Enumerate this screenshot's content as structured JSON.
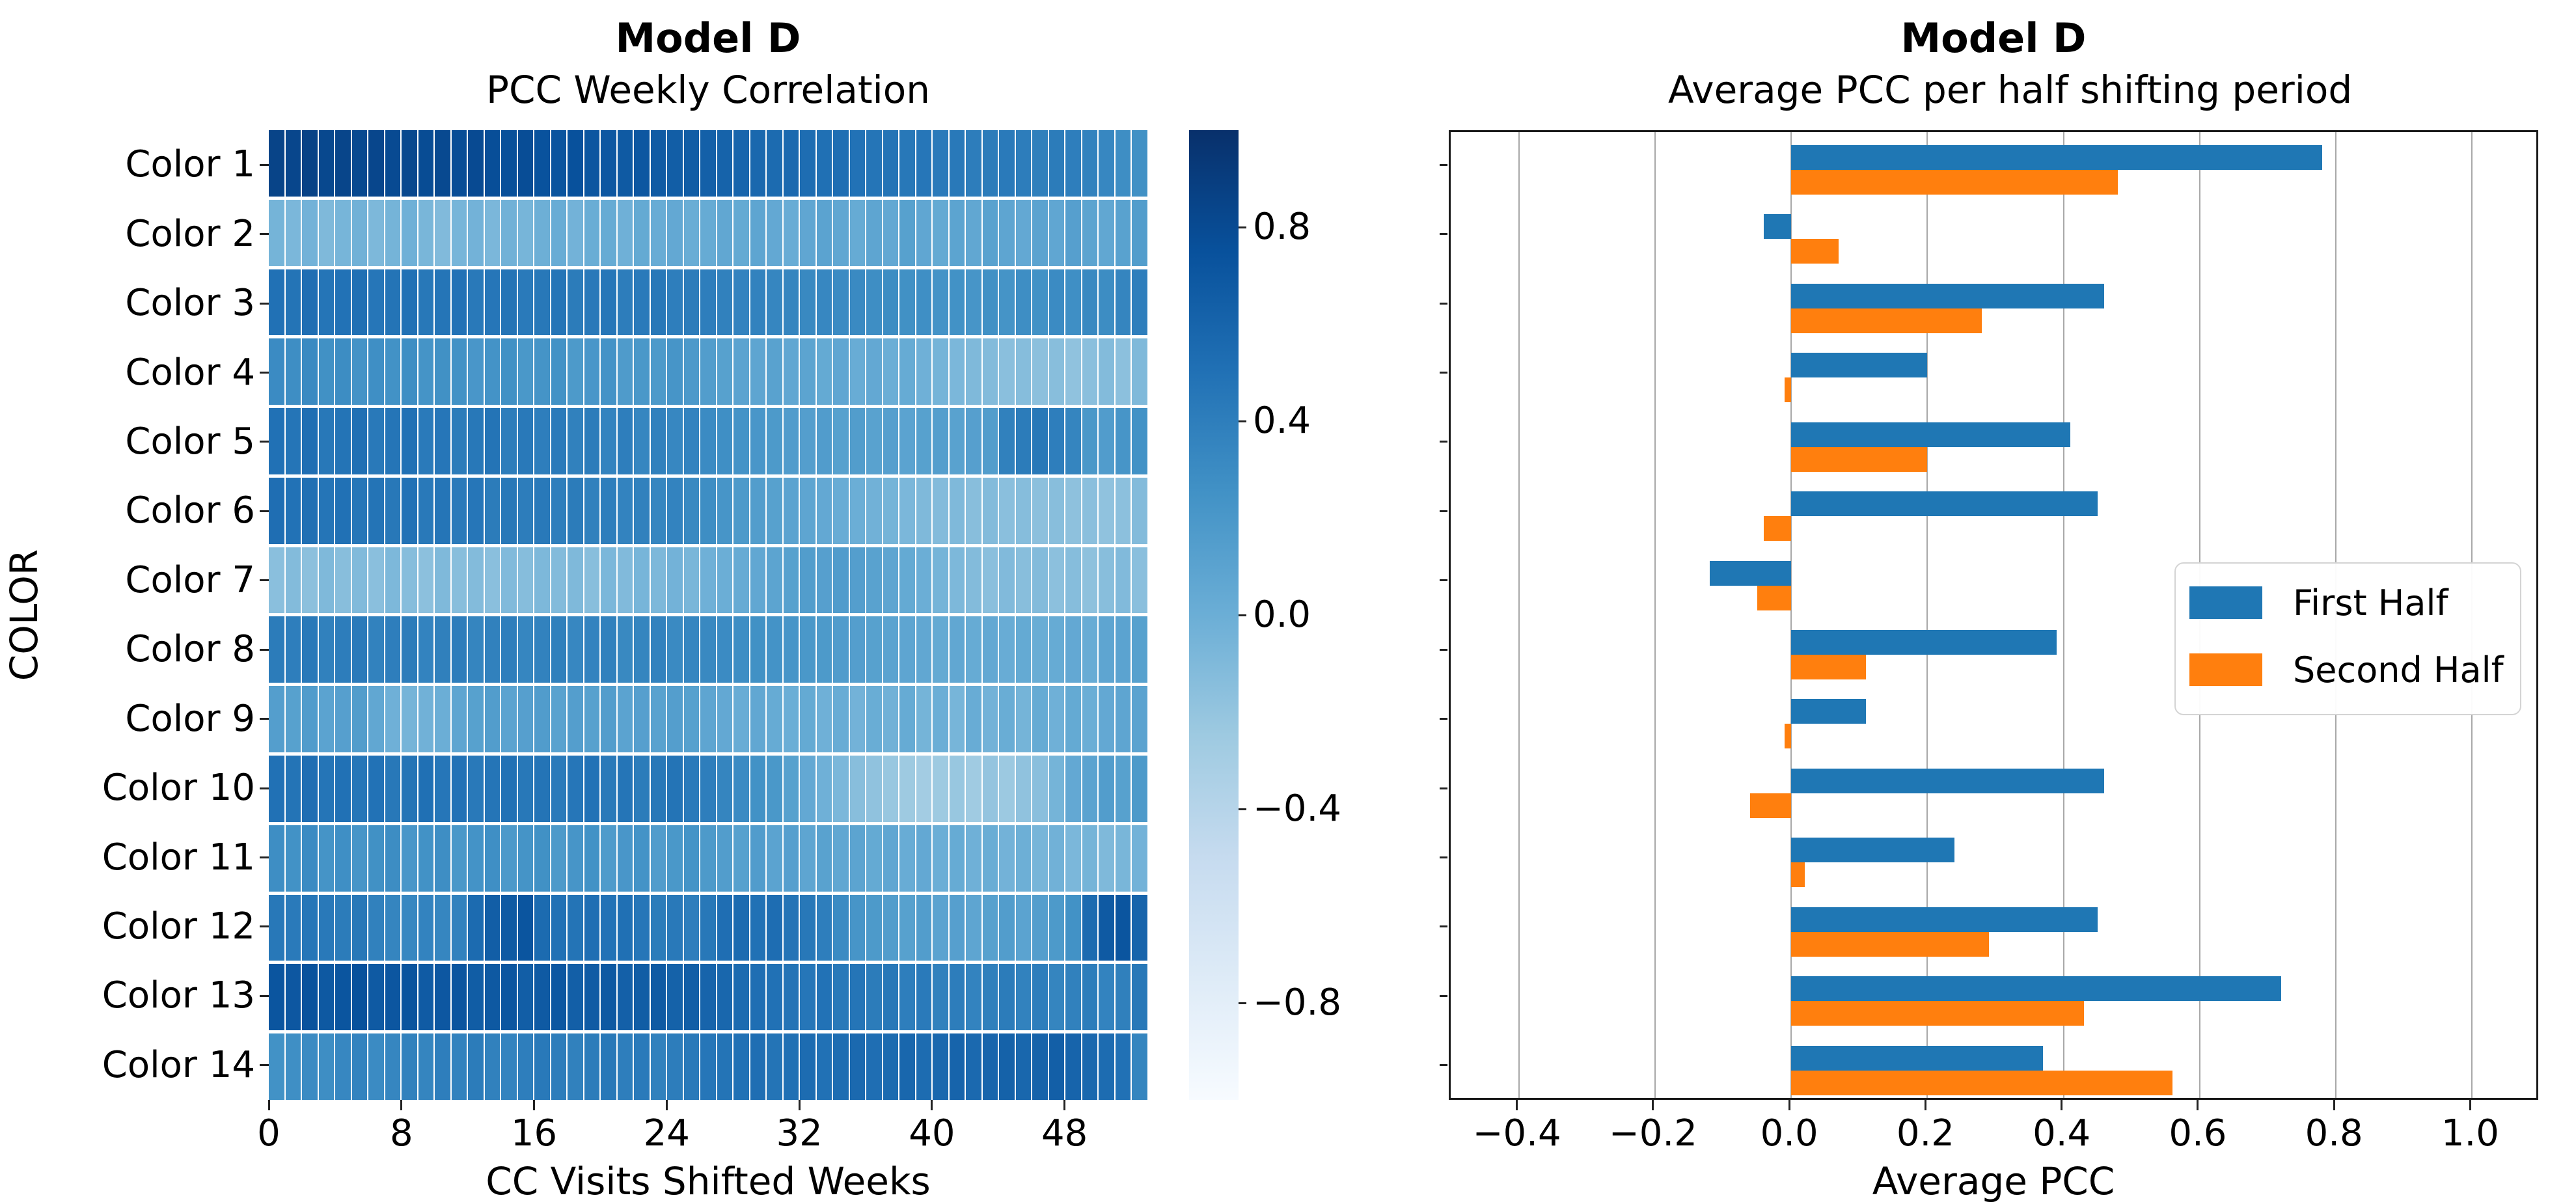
{
  "figure": {
    "background": "#ffffff"
  },
  "left_chart": {
    "title": "Model D",
    "subtitle": "PCC Weekly Correlation",
    "xlabel": "CC Visits Shifted Weeks",
    "ylabel": "COLOR",
    "x_tick_labels": [
      "0",
      "8",
      "16",
      "24",
      "32",
      "40",
      "48"
    ],
    "x_tick_values": [
      0,
      8,
      16,
      24,
      32,
      40,
      48
    ],
    "categories": [
      "Color 1",
      "Color 2",
      "Color 3",
      "Color 4",
      "Color 5",
      "Color 6",
      "Color 7",
      "Color 8",
      "Color 9",
      "Color 10",
      "Color 11",
      "Color 12",
      "Color 13",
      "Color 14"
    ],
    "colorbar": {
      "tick_labels": [
        "0.8",
        "0.4",
        "0.0",
        "−0.4",
        "−0.8"
      ],
      "tick_values": [
        0.8,
        0.4,
        0.0,
        -0.4,
        -0.8
      ],
      "vmin": -1,
      "vmax": 1
    }
  },
  "right_chart": {
    "title": "Model D",
    "subtitle": "Average PCC per half shifting period",
    "xlabel": "Average PCC",
    "x_tick_labels": [
      "−0.4",
      "−0.2",
      "0.0",
      "0.2",
      "0.4",
      "0.6",
      "0.8",
      "1.0"
    ],
    "x_tick_values": [
      -0.4,
      -0.2,
      0.0,
      0.2,
      0.4,
      0.6,
      0.8,
      1.0
    ],
    "xlim": [
      -0.5,
      1.1
    ],
    "legend": {
      "first_label": "First Half",
      "second_label": "Second Half"
    }
  },
  "colors": {
    "first_half": "#1f77b4",
    "second_half": "#ff7f0e",
    "grid": "#a8a8a8",
    "colormap_stops": [
      "#f7fbff",
      "#deebf7",
      "#c6dbef",
      "#9ecae1",
      "#6baed6",
      "#4292c6",
      "#2171b5",
      "#08519c",
      "#08306b"
    ]
  },
  "chart_data": [
    {
      "type": "heatmap",
      "title": "Model D — PCC Weekly Correlation",
      "xlabel": "CC Visits Shifted Weeks",
      "ylabel": "COLOR",
      "colormap": "Blues",
      "vmin": -1,
      "vmax": 1,
      "weeks": 53,
      "rows": [
        "Color 1",
        "Color 2",
        "Color 3",
        "Color 4",
        "Color 5",
        "Color 6",
        "Color 7",
        "Color 8",
        "Color 9",
        "Color 10",
        "Color 11",
        "Color 12",
        "Color 13",
        "Color 14"
      ],
      "values": [
        [
          0.85,
          0.83,
          0.86,
          0.82,
          0.84,
          0.81,
          0.83,
          0.8,
          0.82,
          0.79,
          0.81,
          0.78,
          0.8,
          0.77,
          0.76,
          0.78,
          0.74,
          0.73,
          0.75,
          0.71,
          0.7,
          0.68,
          0.7,
          0.67,
          0.65,
          0.66,
          0.63,
          0.61,
          0.59,
          0.57,
          0.55,
          0.56,
          0.53,
          0.51,
          0.52,
          0.49,
          0.47,
          0.48,
          0.45,
          0.46,
          0.43,
          0.44,
          0.41,
          0.42,
          0.43,
          0.41,
          0.39,
          0.42,
          0.4,
          0.37,
          0.33,
          0.28,
          0.26
        ],
        [
          -0.05,
          -0.08,
          -0.04,
          -0.1,
          -0.06,
          -0.03,
          -0.09,
          -0.05,
          -0.02,
          -0.07,
          -0.11,
          -0.06,
          -0.04,
          -0.08,
          -0.03,
          -0.06,
          -0.01,
          0.02,
          -0.04,
          0.01,
          0.03,
          -0.02,
          0.04,
          0.02,
          0.05,
          0.01,
          0.03,
          0.06,
          0.04,
          0.08,
          0.05,
          0.02,
          0.07,
          0.1,
          0.06,
          0.03,
          0.08,
          0.05,
          0.12,
          0.07,
          0.04,
          0.09,
          0.06,
          0.11,
          0.08,
          0.05,
          0.1,
          0.07,
          0.13,
          0.09,
          0.06,
          0.11,
          0.15
        ],
        [
          0.5,
          0.48,
          0.52,
          0.47,
          0.49,
          0.51,
          0.46,
          0.48,
          0.5,
          0.45,
          0.47,
          0.49,
          0.44,
          0.46,
          0.48,
          0.43,
          0.45,
          0.47,
          0.42,
          0.44,
          0.46,
          0.41,
          0.43,
          0.45,
          0.4,
          0.42,
          0.4,
          0.38,
          0.36,
          0.37,
          0.34,
          0.35,
          0.32,
          0.33,
          0.3,
          0.31,
          0.28,
          0.29,
          0.26,
          0.27,
          0.24,
          0.25,
          0.22,
          0.26,
          0.23,
          0.28,
          0.25,
          0.3,
          0.27,
          0.32,
          0.29,
          0.35,
          0.4
        ],
        [
          0.3,
          0.28,
          0.31,
          0.26,
          0.29,
          0.24,
          0.27,
          0.25,
          0.28,
          0.23,
          0.26,
          0.25,
          0.21,
          0.24,
          0.26,
          0.2,
          0.23,
          0.25,
          0.18,
          0.21,
          0.24,
          0.17,
          0.2,
          0.18,
          0.22,
          0.19,
          0.15,
          0.12,
          0.1,
          0.08,
          0.11,
          0.06,
          0.09,
          0.04,
          0.07,
          0.02,
          0.05,
          0.0,
          0.03,
          -0.02,
          -0.05,
          -0.08,
          -0.1,
          -0.12,
          -0.15,
          -0.13,
          -0.16,
          -0.14,
          -0.18,
          -0.15,
          -0.12,
          -0.16,
          -0.1
        ],
        [
          0.5,
          0.47,
          0.52,
          0.45,
          0.48,
          0.51,
          0.44,
          0.47,
          0.5,
          0.43,
          0.46,
          0.42,
          0.45,
          0.48,
          0.41,
          0.44,
          0.4,
          0.43,
          0.38,
          0.42,
          0.36,
          0.4,
          0.34,
          0.38,
          0.33,
          0.36,
          0.3,
          0.27,
          0.24,
          0.21,
          0.18,
          0.16,
          0.14,
          0.16,
          0.12,
          0.15,
          0.11,
          0.13,
          0.1,
          0.12,
          0.14,
          0.11,
          0.13,
          0.15,
          0.38,
          0.42,
          0.45,
          0.4,
          0.35,
          0.2,
          0.16,
          0.22,
          0.25
        ],
        [
          0.52,
          0.49,
          0.51,
          0.47,
          0.5,
          0.46,
          0.48,
          0.45,
          0.49,
          0.44,
          0.47,
          0.43,
          0.46,
          0.42,
          0.45,
          0.41,
          0.44,
          0.4,
          0.42,
          0.38,
          0.4,
          0.36,
          0.38,
          0.34,
          0.36,
          0.32,
          0.28,
          0.22,
          0.18,
          0.15,
          0.12,
          0.1,
          0.08,
          0.05,
          0.02,
          0.0,
          -0.03,
          -0.05,
          -0.08,
          -0.1,
          -0.12,
          -0.1,
          -0.14,
          -0.12,
          -0.15,
          -0.13,
          -0.16,
          -0.14,
          -0.17,
          -0.15,
          -0.18,
          -0.16,
          -0.12
        ],
        [
          -0.15,
          -0.12,
          -0.16,
          -0.1,
          -0.14,
          -0.11,
          -0.15,
          -0.09,
          -0.13,
          -0.16,
          -0.1,
          -0.14,
          -0.12,
          -0.15,
          -0.11,
          -0.13,
          -0.09,
          -0.12,
          -0.1,
          -0.14,
          -0.08,
          -0.11,
          -0.06,
          -0.09,
          -0.04,
          -0.07,
          -0.02,
          0.0,
          0.03,
          0.06,
          0.09,
          0.12,
          0.15,
          0.13,
          0.16,
          0.14,
          0.11,
          0.08,
          0.04,
          0.0,
          -0.05,
          -0.09,
          -0.12,
          -0.15,
          -0.11,
          -0.14,
          -0.12,
          -0.16,
          -0.13,
          -0.17,
          -0.14,
          -0.11,
          -0.15
        ],
        [
          0.42,
          0.4,
          0.44,
          0.38,
          0.41,
          0.43,
          0.37,
          0.4,
          0.42,
          0.36,
          0.39,
          0.41,
          0.35,
          0.38,
          0.4,
          0.34,
          0.37,
          0.39,
          0.33,
          0.36,
          0.38,
          0.32,
          0.35,
          0.37,
          0.31,
          0.34,
          0.32,
          0.3,
          0.28,
          0.26,
          0.24,
          0.22,
          0.2,
          0.18,
          0.16,
          0.14,
          0.12,
          0.1,
          0.08,
          0.06,
          0.04,
          0.06,
          0.03,
          0.05,
          0.02,
          0.04,
          0.01,
          0.03,
          0.05,
          0.02,
          0.08,
          0.1,
          0.12
        ],
        [
          0.14,
          0.12,
          0.16,
          0.1,
          0.13,
          0.15,
          0.06,
          -0.02,
          -0.05,
          -0.03,
          0.0,
          0.08,
          0.12,
          0.15,
          0.1,
          0.13,
          0.16,
          0.11,
          0.14,
          0.12,
          0.15,
          0.1,
          0.13,
          0.11,
          0.14,
          0.12,
          0.08,
          0.05,
          0.02,
          0.06,
          0.03,
          0.0,
          0.04,
          -0.02,
          0.02,
          -0.04,
          0.01,
          -0.03,
          0.03,
          -0.05,
          0.0,
          -0.06,
          0.02,
          -0.04,
          0.01,
          -0.05,
          0.03,
          -0.02,
          0.04,
          0.0,
          0.05,
          0.08,
          0.1
        ],
        [
          0.5,
          0.48,
          0.52,
          0.47,
          0.5,
          0.46,
          0.49,
          0.45,
          0.48,
          0.51,
          0.46,
          0.49,
          0.44,
          0.47,
          0.5,
          0.45,
          0.48,
          0.43,
          0.46,
          0.49,
          0.44,
          0.47,
          0.42,
          0.45,
          0.48,
          0.43,
          0.4,
          0.35,
          0.3,
          0.25,
          0.2,
          0.12,
          0.05,
          -0.02,
          -0.08,
          -0.14,
          -0.18,
          -0.22,
          -0.25,
          -0.28,
          -0.25,
          -0.22,
          -0.26,
          -0.2,
          -0.24,
          -0.18,
          -0.15,
          -0.05,
          0.05,
          0.1,
          0.15,
          0.12,
          0.18
        ],
        [
          0.28,
          0.25,
          0.3,
          0.23,
          0.27,
          0.22,
          0.26,
          0.29,
          0.21,
          0.25,
          0.28,
          0.2,
          0.24,
          0.27,
          0.19,
          0.23,
          0.26,
          0.18,
          0.22,
          0.25,
          0.17,
          0.21,
          0.24,
          0.16,
          0.2,
          0.23,
          0.18,
          0.15,
          0.12,
          0.16,
          0.1,
          0.13,
          0.08,
          0.11,
          0.06,
          0.09,
          0.04,
          0.07,
          0.02,
          0.05,
          0.0,
          0.03,
          -0.02,
          0.01,
          -0.04,
          -0.01,
          -0.06,
          -0.03,
          -0.08,
          -0.05,
          -0.1,
          -0.07,
          -0.04
        ],
        [
          0.45,
          0.43,
          0.46,
          0.44,
          0.42,
          0.45,
          0.38,
          0.35,
          0.33,
          0.36,
          0.34,
          0.37,
          0.55,
          0.65,
          0.68,
          0.72,
          0.55,
          0.5,
          0.48,
          0.52,
          0.49,
          0.51,
          0.46,
          0.42,
          0.44,
          0.4,
          0.45,
          0.52,
          0.55,
          0.5,
          0.53,
          0.48,
          0.45,
          0.4,
          0.3,
          0.22,
          0.18,
          0.15,
          0.12,
          0.15,
          0.1,
          0.13,
          0.08,
          0.12,
          0.15,
          0.1,
          0.14,
          0.18,
          0.25,
          0.55,
          0.68,
          0.72,
          0.6
        ],
        [
          0.72,
          0.7,
          0.74,
          0.69,
          0.72,
          0.75,
          0.68,
          0.71,
          0.73,
          0.67,
          0.7,
          0.72,
          0.66,
          0.69,
          0.71,
          0.65,
          0.68,
          0.7,
          0.64,
          0.67,
          0.69,
          0.63,
          0.66,
          0.68,
          0.62,
          0.65,
          0.6,
          0.58,
          0.55,
          0.52,
          0.5,
          0.48,
          0.46,
          0.49,
          0.44,
          0.47,
          0.42,
          0.45,
          0.4,
          0.43,
          0.38,
          0.41,
          0.36,
          0.39,
          0.42,
          0.37,
          0.4,
          0.35,
          0.38,
          0.41,
          0.36,
          0.39,
          0.45
        ],
        [
          0.25,
          0.27,
          0.3,
          0.28,
          0.33,
          0.36,
          0.3,
          0.34,
          0.38,
          0.35,
          0.4,
          0.37,
          0.42,
          0.38,
          0.36,
          0.4,
          0.44,
          0.41,
          0.38,
          0.42,
          0.45,
          0.4,
          0.43,
          0.38,
          0.41,
          0.44,
          0.46,
          0.48,
          0.5,
          0.52,
          0.48,
          0.51,
          0.54,
          0.5,
          0.53,
          0.56,
          0.52,
          0.55,
          0.58,
          0.54,
          0.57,
          0.6,
          0.56,
          0.59,
          0.62,
          0.58,
          0.61,
          0.64,
          0.6,
          0.57,
          0.54,
          0.5,
          0.35
        ]
      ]
    },
    {
      "type": "bar",
      "orientation": "horizontal",
      "title": "Model D — Average PCC per half shifting period",
      "xlabel": "Average PCC",
      "xlim": [
        -0.5,
        1.1
      ],
      "grid": true,
      "legend_position": "center right",
      "categories": [
        "Color 1",
        "Color 2",
        "Color 3",
        "Color 4",
        "Color 5",
        "Color 6",
        "Color 7",
        "Color 8",
        "Color 9",
        "Color 10",
        "Color 11",
        "Color 12",
        "Color 13",
        "Color 14"
      ],
      "series": [
        {
          "name": "First Half",
          "color": "#1f77b4",
          "values": [
            0.78,
            -0.04,
            0.46,
            0.2,
            0.41,
            0.45,
            -0.12,
            0.39,
            0.11,
            0.46,
            0.24,
            0.45,
            0.72,
            0.37
          ]
        },
        {
          "name": "Second Half",
          "color": "#ff7f0e",
          "values": [
            0.48,
            0.07,
            0.28,
            -0.01,
            0.2,
            -0.04,
            -0.05,
            0.11,
            -0.01,
            -0.06,
            0.02,
            0.29,
            0.43,
            0.56
          ]
        }
      ]
    }
  ]
}
